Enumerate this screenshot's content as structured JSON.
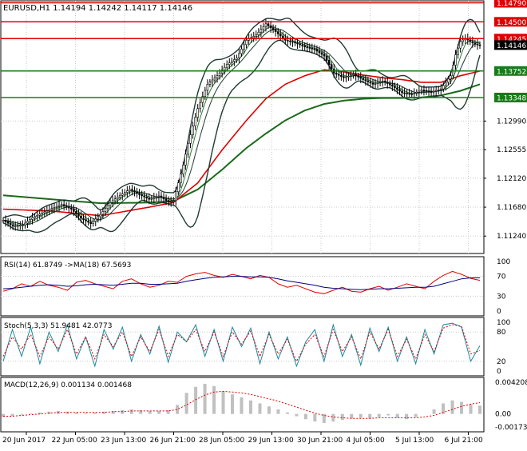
{
  "main_title": "EURUSD,H1  1.14194 1.14242 1.14117 1.14146",
  "colors": {
    "grid": "#c8c8c8",
    "frame": "#000000",
    "candle": "#000000",
    "bands": "#1f3b34",
    "ma_fast": "#2e7d32",
    "ma_slow_red": "#e00000",
    "ma_long_green": "#1a6a1a",
    "level_red": "#e00000",
    "level_green": "#1a7a1a",
    "rsi": "#e00000",
    "rsi_ma": "#000080",
    "stoch_main": "#1a8aa0",
    "stoch_signal": "#e00000",
    "macd_hist": "#c0c0c0",
    "macd_signal": "#e00000"
  },
  "chart_data": [
    {
      "type": "line",
      "title": "EURUSD,H1",
      "ohlc_readout": {
        "open": "1.14194",
        "high": "1.14242",
        "low": "1.14117",
        "close": "1.14146"
      },
      "x_tick_labels": [
        "20 Jun 2017",
        "22 Jun 05:00",
        "23 Jun 13:00",
        "26 Jun 21:00",
        "28 Jun 05:00",
        "29 Jun 13:00",
        "30 Jun 21:00",
        "4 Jul 05:00",
        "5 Jul 13:00",
        "6 Jul 21:00"
      ],
      "y_tick_labels": [
        "1.14790",
        "1.14500",
        "1.14245",
        "1.14146",
        "1.13752",
        "1.13348",
        "1.12990",
        "1.12555",
        "1.12120",
        "1.11680",
        "1.11240"
      ],
      "y_tick_values": [
        1.1479,
        1.145,
        1.14245,
        1.14146,
        1.13752,
        1.13348,
        1.1299,
        1.12555,
        1.1212,
        1.1168,
        1.1124
      ],
      "ylim": [
        1.10975,
        1.1482
      ],
      "levels": [
        {
          "label": "1.14790",
          "value": 1.1479,
          "color": "red"
        },
        {
          "label": "1.14500",
          "value": 1.145,
          "color": "red"
        },
        {
          "label": "1.14245",
          "value": 1.14245,
          "color": "red"
        },
        {
          "label": "1.13752",
          "value": 1.13752,
          "color": "green"
        },
        {
          "label": "1.13348",
          "value": 1.13348,
          "color": "green"
        }
      ],
      "price_path": [
        [
          0,
          1.1148
        ],
        [
          4,
          1.1139
        ],
        [
          8,
          1.1141
        ],
        [
          12,
          1.1152
        ],
        [
          16,
          1.1159
        ],
        [
          20,
          1.1166
        ],
        [
          24,
          1.1172
        ],
        [
          28,
          1.1165
        ],
        [
          32,
          1.1151
        ],
        [
          36,
          1.1143
        ],
        [
          40,
          1.1157
        ],
        [
          44,
          1.1175
        ],
        [
          48,
          1.1186
        ],
        [
          52,
          1.1195
        ],
        [
          56,
          1.1187
        ],
        [
          60,
          1.118
        ],
        [
          64,
          1.1185
        ],
        [
          68,
          1.1176
        ],
        [
          70,
          1.1178
        ],
        [
          74,
          1.1232
        ],
        [
          76,
          1.1265
        ],
        [
          80,
          1.1318
        ],
        [
          84,
          1.1355
        ],
        [
          88,
          1.1368
        ],
        [
          92,
          1.1385
        ],
        [
          96,
          1.1395
        ],
        [
          100,
          1.1422
        ],
        [
          104,
          1.143
        ],
        [
          108,
          1.1447
        ],
        [
          112,
          1.1435
        ],
        [
          116,
          1.1422
        ],
        [
          120,
          1.1418
        ],
        [
          124,
          1.1412
        ],
        [
          128,
          1.1408
        ],
        [
          132,
          1.1398
        ],
        [
          136,
          1.1372
        ],
        [
          140,
          1.1365
        ],
        [
          144,
          1.137
        ],
        [
          148,
          1.1362
        ],
        [
          152,
          1.1355
        ],
        [
          156,
          1.136
        ],
        [
          160,
          1.1352
        ],
        [
          164,
          1.1342
        ],
        [
          168,
          1.134
        ],
        [
          172,
          1.1346
        ],
        [
          176,
          1.1343
        ],
        [
          180,
          1.1348
        ],
        [
          184,
          1.1368
        ],
        [
          186,
          1.14
        ],
        [
          188,
          1.142
        ],
        [
          190,
          1.1425
        ],
        [
          192,
          1.142
        ],
        [
          194,
          1.1416
        ],
        [
          196,
          1.1414
        ]
      ],
      "ma_red_path": [
        [
          0,
          1.1165
        ],
        [
          20,
          1.1162
        ],
        [
          40,
          1.1155
        ],
        [
          60,
          1.1168
        ],
        [
          70,
          1.1175
        ],
        [
          80,
          1.1205
        ],
        [
          90,
          1.1255
        ],
        [
          100,
          1.13
        ],
        [
          108,
          1.1333
        ],
        [
          116,
          1.1355
        ],
        [
          124,
          1.1368
        ],
        [
          132,
          1.1377
        ],
        [
          140,
          1.1374
        ],
        [
          148,
          1.1369
        ],
        [
          156,
          1.1365
        ],
        [
          164,
          1.1362
        ],
        [
          172,
          1.1358
        ],
        [
          180,
          1.1358
        ],
        [
          188,
          1.1368
        ],
        [
          196,
          1.1375
        ]
      ],
      "ma_green_path": [
        [
          0,
          1.1186
        ],
        [
          20,
          1.118
        ],
        [
          40,
          1.1174
        ],
        [
          60,
          1.1175
        ],
        [
          70,
          1.1177
        ],
        [
          80,
          1.1195
        ],
        [
          90,
          1.1225
        ],
        [
          100,
          1.1258
        ],
        [
          108,
          1.128
        ],
        [
          116,
          1.13
        ],
        [
          124,
          1.1315
        ],
        [
          132,
          1.1325
        ],
        [
          140,
          1.133
        ],
        [
          148,
          1.1333
        ],
        [
          156,
          1.1334
        ],
        [
          164,
          1.1334
        ],
        [
          172,
          1.1335
        ],
        [
          180,
          1.1338
        ],
        [
          188,
          1.1345
        ],
        [
          196,
          1.1355
        ]
      ]
    },
    {
      "type": "line",
      "title": "RSI(14) 61.8749  ->MA(18) 67.5693",
      "y_tick_labels": [
        "100",
        "70",
        "30",
        "0"
      ],
      "y_tick_values": [
        100,
        70,
        30,
        0
      ],
      "ylim": [
        0,
        100
      ],
      "series": [
        {
          "key": "rsi",
          "values": [
            40,
            45,
            55,
            50,
            60,
            52,
            48,
            42,
            58,
            62,
            55,
            50,
            45,
            60,
            65,
            55,
            48,
            52,
            60,
            58,
            70,
            75,
            78,
            72,
            68,
            74,
            70,
            65,
            72,
            68,
            55,
            48,
            52,
            45,
            38,
            35,
            42,
            48,
            40,
            38,
            45,
            50,
            42,
            48,
            55,
            50,
            45,
            60,
            72,
            80,
            74,
            66,
            62
          ]
        },
        {
          "key": "rsi_ma",
          "values": [
            45,
            46,
            48,
            50,
            52,
            53,
            52,
            50,
            51,
            53,
            54,
            53,
            52,
            54,
            56,
            56,
            54,
            54,
            55,
            56,
            60,
            63,
            66,
            68,
            69,
            70,
            70,
            69,
            69,
            68,
            65,
            61,
            58,
            55,
            52,
            48,
            46,
            45,
            44,
            43,
            44,
            45,
            45,
            46,
            47,
            48,
            48,
            50,
            55,
            60,
            65,
            67,
            67
          ]
        }
      ]
    },
    {
      "type": "line",
      "title": "Stoch(5,3,3) 51.9481 42.0773",
      "y_tick_labels": [
        "100",
        "80",
        "20",
        "0"
      ],
      "y_tick_values": [
        100,
        80,
        20,
        0
      ],
      "ylim": [
        0,
        100
      ],
      "series": [
        {
          "key": "stoch_main",
          "values": [
            20,
            85,
            30,
            90,
            15,
            80,
            40,
            95,
            25,
            70,
            10,
            85,
            45,
            90,
            20,
            75,
            35,
            92,
            18,
            80,
            60,
            95,
            30,
            85,
            20,
            90,
            50,
            88,
            15,
            80,
            25,
            70,
            10,
            60,
            85,
            20,
            95,
            30,
            75,
            12,
            88,
            40,
            90,
            20,
            70,
            15,
            85,
            35,
            95,
            98,
            90,
            20,
            52
          ]
        },
        {
          "key": "stoch_signal",
          "values": [
            30,
            70,
            45,
            75,
            30,
            70,
            45,
            85,
            35,
            70,
            25,
            75,
            50,
            80,
            30,
            70,
            40,
            85,
            30,
            75,
            60,
            85,
            40,
            80,
            30,
            80,
            55,
            82,
            30,
            75,
            35,
            65,
            20,
            55,
            75,
            30,
            85,
            40,
            70,
            25,
            80,
            45,
            85,
            30,
            65,
            25,
            75,
            40,
            88,
            95,
            92,
            35,
            42
          ]
        }
      ]
    },
    {
      "type": "bar",
      "title": "MACD(12,26,9) 0.001134 0.001468",
      "y_tick_labels": [
        "0.004208",
        "0.00",
        "-0.001734"
      ],
      "y_tick_values": [
        0.004208,
        0,
        -0.001734
      ],
      "ylim": [
        -0.001734,
        0.004208
      ],
      "series": [
        {
          "key": "macd_hist",
          "values": [
            -0.0004,
            -0.0003,
            -0.0001,
            0.0001,
            0.0002,
            0.0003,
            0.0004,
            0.0003,
            0.0002,
            0.0001,
            0.0002,
            0.0003,
            0.0004,
            0.0005,
            0.0006,
            0.0005,
            0.0004,
            0.0004,
            0.0005,
            0.0012,
            0.0028,
            0.0036,
            0.004,
            0.0037,
            0.003,
            0.0026,
            0.0022,
            0.0018,
            0.0014,
            0.001,
            0.0006,
            0.0002,
            -0.0003,
            -0.0007,
            -0.001,
            -0.0012,
            -0.001,
            -0.0008,
            -0.0006,
            -0.0005,
            -0.0006,
            -0.0004,
            -0.0002,
            -0.0005,
            -0.0007,
            -0.0004,
            0.0,
            0.0006,
            0.0014,
            0.0018,
            0.0016,
            0.0013,
            0.0011
          ]
        },
        {
          "key": "macd_signal",
          "values": [
            -0.0003,
            -0.0003,
            -0.0002,
            -0.0001,
            0.0,
            0.0001,
            0.0002,
            0.0002,
            0.0002,
            0.0002,
            0.0002,
            0.0002,
            0.0003,
            0.0003,
            0.0004,
            0.0004,
            0.0004,
            0.0004,
            0.0004,
            0.0006,
            0.0012,
            0.0019,
            0.0025,
            0.0029,
            0.003,
            0.0029,
            0.0028,
            0.0026,
            0.0023,
            0.002,
            0.0017,
            0.0013,
            0.0009,
            0.0005,
            0.0001,
            -0.0002,
            -0.0004,
            -0.0005,
            -0.0006,
            -0.0006,
            -0.0006,
            -0.0005,
            -0.0005,
            -0.0005,
            -0.0005,
            -0.0005,
            -0.0004,
            -0.0002,
            0.0002,
            0.0006,
            0.001,
            0.0013,
            0.0015
          ]
        }
      ]
    }
  ]
}
